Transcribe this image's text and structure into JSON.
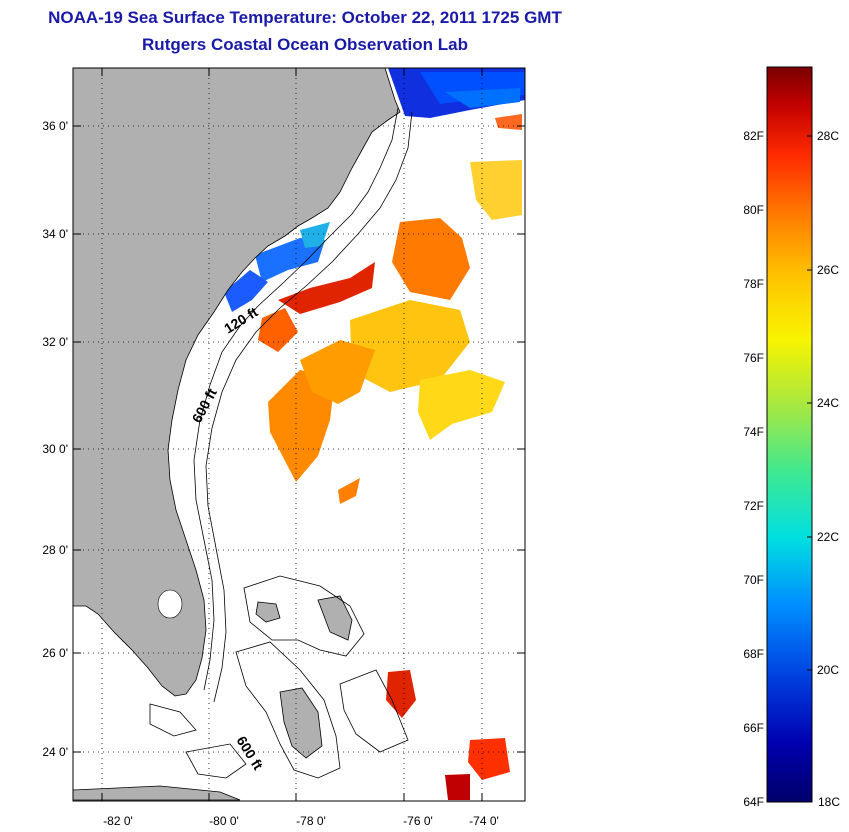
{
  "header": {
    "title": "NOAA-19 Sea Surface Temperature:  October 22, 2011 1725 GMT",
    "subtitle": "Rutgers Coastal Ocean Observation Lab"
  },
  "map": {
    "lon_labels": [
      "-82 0'",
      "-80 0'",
      "-78 0'",
      "-76 0'",
      "-74 0'"
    ],
    "lat_labels": [
      "36 0'",
      "34 0'",
      "32 0'",
      "30 0'",
      "28 0'",
      "26 0'",
      "24 0'"
    ],
    "contour_labels": {
      "shelf_120": "120 ft",
      "slope_600_north": "600 ft",
      "slope_600_south": "600 ft"
    }
  },
  "colorbar": {
    "fahrenheit_labels": [
      "82F",
      "80F",
      "78F",
      "76F",
      "74F",
      "72F",
      "70F",
      "68F",
      "66F",
      "64F"
    ],
    "celsius_labels": [
      "28C",
      "26C",
      "24C",
      "22C",
      "20C",
      "18C"
    ],
    "colors": [
      "#7a0000",
      "#c00000",
      "#ff2a00",
      "#ff7a00",
      "#ffc000",
      "#f8f400",
      "#a8e840",
      "#40e890",
      "#00e0e0",
      "#0090ff",
      "#0040e0",
      "#0000b0",
      "#00006a"
    ]
  }
}
